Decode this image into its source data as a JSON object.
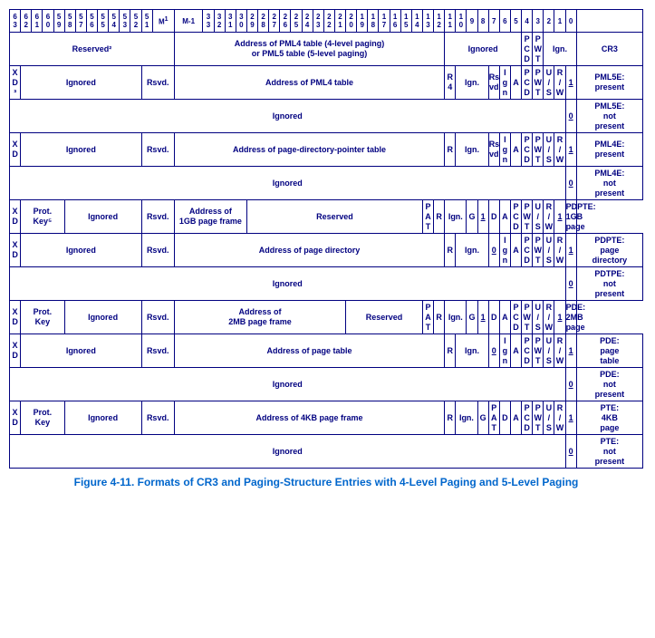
{
  "caption": "Figure 4-11.  Formats of CR3 and Paging-Structure Entries with 4-Level Paging and 5-Level Paging",
  "colors": {
    "border": "#000080",
    "text": "#000080",
    "caption": "#0066cc",
    "background": "#ffffff"
  },
  "header_markers": {
    "m1": "M",
    "mminus1": "M-1"
  },
  "bits_high": [
    "6\n3",
    "6\n2",
    "6\n1",
    "6\n0",
    "5\n9",
    "5\n8",
    "5\n7",
    "5\n6",
    "5\n5",
    "5\n4",
    "5\n3",
    "5\n2",
    "5\n1"
  ],
  "bits_mid": [
    "3\n3",
    "3\n2",
    "3\n1",
    "3\n0",
    "2\n9",
    "2\n8",
    "2\n7",
    "2\n6",
    "2\n5",
    "2\n4",
    "2\n3",
    "2\n2",
    "2\n1",
    "2\n0",
    "1\n9",
    "1\n8",
    "1\n7",
    "1\n6",
    "1\n5",
    "1\n4",
    "1\n3",
    "1\n2",
    "1\n1",
    "1\n0",
    "9",
    "8",
    "7",
    "6",
    "5",
    "4",
    "3",
    "2",
    "1",
    "0"
  ],
  "rows": {
    "cr3": {
      "reserved": "Reserved²",
      "address": "Address of PML4 table (4-level paging)\nor PML5 table (5-level paging)",
      "ignored": "Ignored",
      "pcd": "P\nC\nD",
      "pwt": "P\nW\nT",
      "ign": "Ign.",
      "label": "CR3"
    },
    "pml5e_present": {
      "xd": "X\nD\n³",
      "ignored": "Ignored",
      "rsvd": "Rsvd.",
      "address": "Address of PML4 table",
      "r4": "R\n4",
      "ign": "Ign.",
      "rsvd2": "Rs\nvd",
      "ign2": "I\ng\nn",
      "a": "A",
      "pcd": "P\nC\nD",
      "pwt": "P\nW\nT",
      "us": "U\n/\nS",
      "rw": "R\n/\nW",
      "one": "1",
      "label": "PML5E:\npresent"
    },
    "pml5e_notpresent": {
      "ignored": "Ignored",
      "zero": "0",
      "label": "PML5E:\nnot\npresent"
    },
    "pml4e_present": {
      "xd": "X\nD",
      "ignored": "Ignored",
      "rsvd": "Rsvd.",
      "address": "Address of page-directory-pointer table",
      "r": "R",
      "ign": "Ign.",
      "rsvd2": "Rs\nvd",
      "ign2": "I\ng\nn",
      "a": "A",
      "pcd": "P\nC\nD",
      "pwt": "P\nW\nT",
      "us": "U\n/\nS",
      "rw": "R\n/\nW",
      "one": "1",
      "label": "PML4E:\npresent"
    },
    "pml4e_notpresent": {
      "ignored": "Ignored",
      "zero": "0",
      "label": "PML4E:\nnot\npresent"
    },
    "pdpte_1gb": {
      "xd": "X\nD",
      "protkey": "Prot.\nKey⁵",
      "ignored": "Ignored",
      "rsvd": "Rsvd.",
      "address": "Address of\n1GB page frame",
      "reserved": "Reserved",
      "pat": "P\nA\nT",
      "r": "R",
      "ign": "Ign.",
      "g": "G",
      "one": "1",
      "d": "D",
      "a": "A",
      "pcd": "P\nC\nD",
      "pwt": "P\nW\nT",
      "us": "U\n/\nS",
      "rw": "R\n/\nW",
      "one2": "1",
      "label": "PDPTE:\n1GB\npage"
    },
    "pdpte_dir": {
      "xd": "X\nD",
      "ignored": "Ignored",
      "rsvd": "Rsvd.",
      "address": "Address of page directory",
      "r": "R",
      "ign": "Ign.",
      "zero": "0",
      "ign2": "I\ng\nn",
      "a": "A",
      "pcd": "P\nC\nD",
      "pwt": "P\nW\nT",
      "us": "U\n/\nS",
      "rw": "R\n/\nW",
      "one": "1",
      "label": "PDPTE:\npage\ndirectory"
    },
    "pdpte_notpresent": {
      "ignored": "Ignored",
      "zero": "0",
      "label": "PDTPE:\nnot\npresent"
    },
    "pde_2mb": {
      "xd": "X\nD",
      "protkey": "Prot.\nKey",
      "ignored": "Ignored",
      "rsvd": "Rsvd.",
      "address": "Address of\n2MB page frame",
      "reserved": "Reserved",
      "pat": "P\nA\nT",
      "r": "R",
      "ign": "Ign.",
      "g": "G",
      "one": "1",
      "d": "D",
      "a": "A",
      "pcd": "P\nC\nD",
      "pwt": "P\nW\nT",
      "us": "U\n/\nS",
      "rw": "R\n/\nW",
      "one2": "1",
      "label": "PDE:\n2MB\npage"
    },
    "pde_table": {
      "xd": "X\nD",
      "ignored": "Ignored",
      "rsvd": "Rsvd.",
      "address": "Address of page table",
      "r": "R",
      "ign": "Ign.",
      "zero": "0",
      "ign2": "I\ng\nn",
      "a": "A",
      "pcd": "P\nC\nD",
      "pwt": "P\nW\nT",
      "us": "U\n/\nS",
      "rw": "R\n/\nW",
      "one": "1",
      "label": "PDE:\npage\ntable"
    },
    "pde_notpresent": {
      "ignored": "Ignored",
      "zero": "0",
      "label": "PDE:\nnot\npresent"
    },
    "pte_4kb": {
      "xd": "X\nD",
      "protkey": "Prot.\nKey",
      "ignored": "Ignored",
      "rsvd": "Rsvd.",
      "address": "Address of 4KB page frame",
      "r": "R",
      "ign": "Ign.",
      "g": "G",
      "pat": "P\nA\nT",
      "d": "D",
      "a": "A",
      "pcd": "P\nC\nD",
      "pwt": "P\nW\nT",
      "us": "U\n/\nS",
      "rw": "R\n/\nW",
      "one": "1",
      "label": "PTE:\n4KB\npage"
    },
    "pte_notpresent": {
      "ignored": "Ignored",
      "zero": "0",
      "label": "PTE:\nnot\npresent"
    }
  }
}
